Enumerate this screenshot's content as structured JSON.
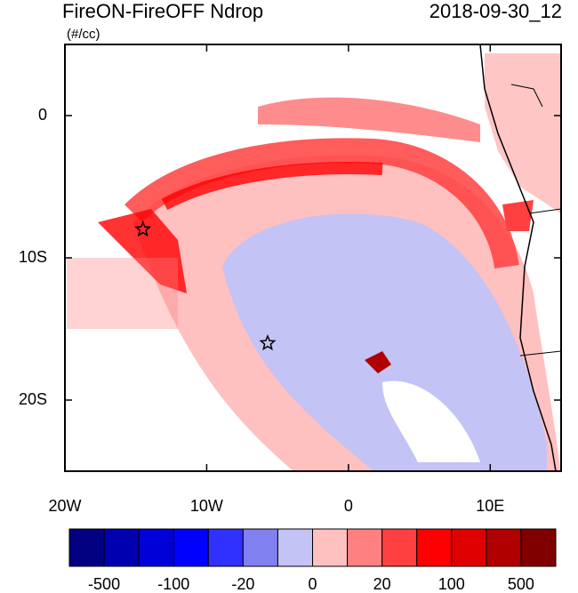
{
  "title": "FireON-FireOFF Ndrop",
  "date": "2018-09-30_12",
  "units": "(#/cc)",
  "map": {
    "lonlim": [
      -20,
      15
    ],
    "latlim": [
      -25,
      5
    ],
    "lon_ticks": [
      {
        "value": -20,
        "label": "20W"
      },
      {
        "value": -10,
        "label": "10W"
      },
      0,
      {
        "value": 10,
        "label": "10E"
      }
    ],
    "lat_ticks": [
      0,
      {
        "value": -10,
        "label": "10S"
      },
      {
        "value": -20,
        "label": "20S"
      }
    ],
    "markers": [
      {
        "lon": -14.5,
        "lat": -8
      },
      {
        "lon": -5.7,
        "lat": -16
      }
    ]
  },
  "colorbar": {
    "colors": [
      "#000080",
      "#0000b0",
      "#0000d8",
      "#0000ff",
      "#3030ff",
      "#8080f0",
      "#c3c3f5",
      "#ffc0c0",
      "#ff8080",
      "#ff4040",
      "#ff0000",
      "#e00000",
      "#b00000",
      "#800000"
    ],
    "labels": [
      -500,
      -100,
      -20,
      0,
      20,
      100,
      500
    ]
  }
}
